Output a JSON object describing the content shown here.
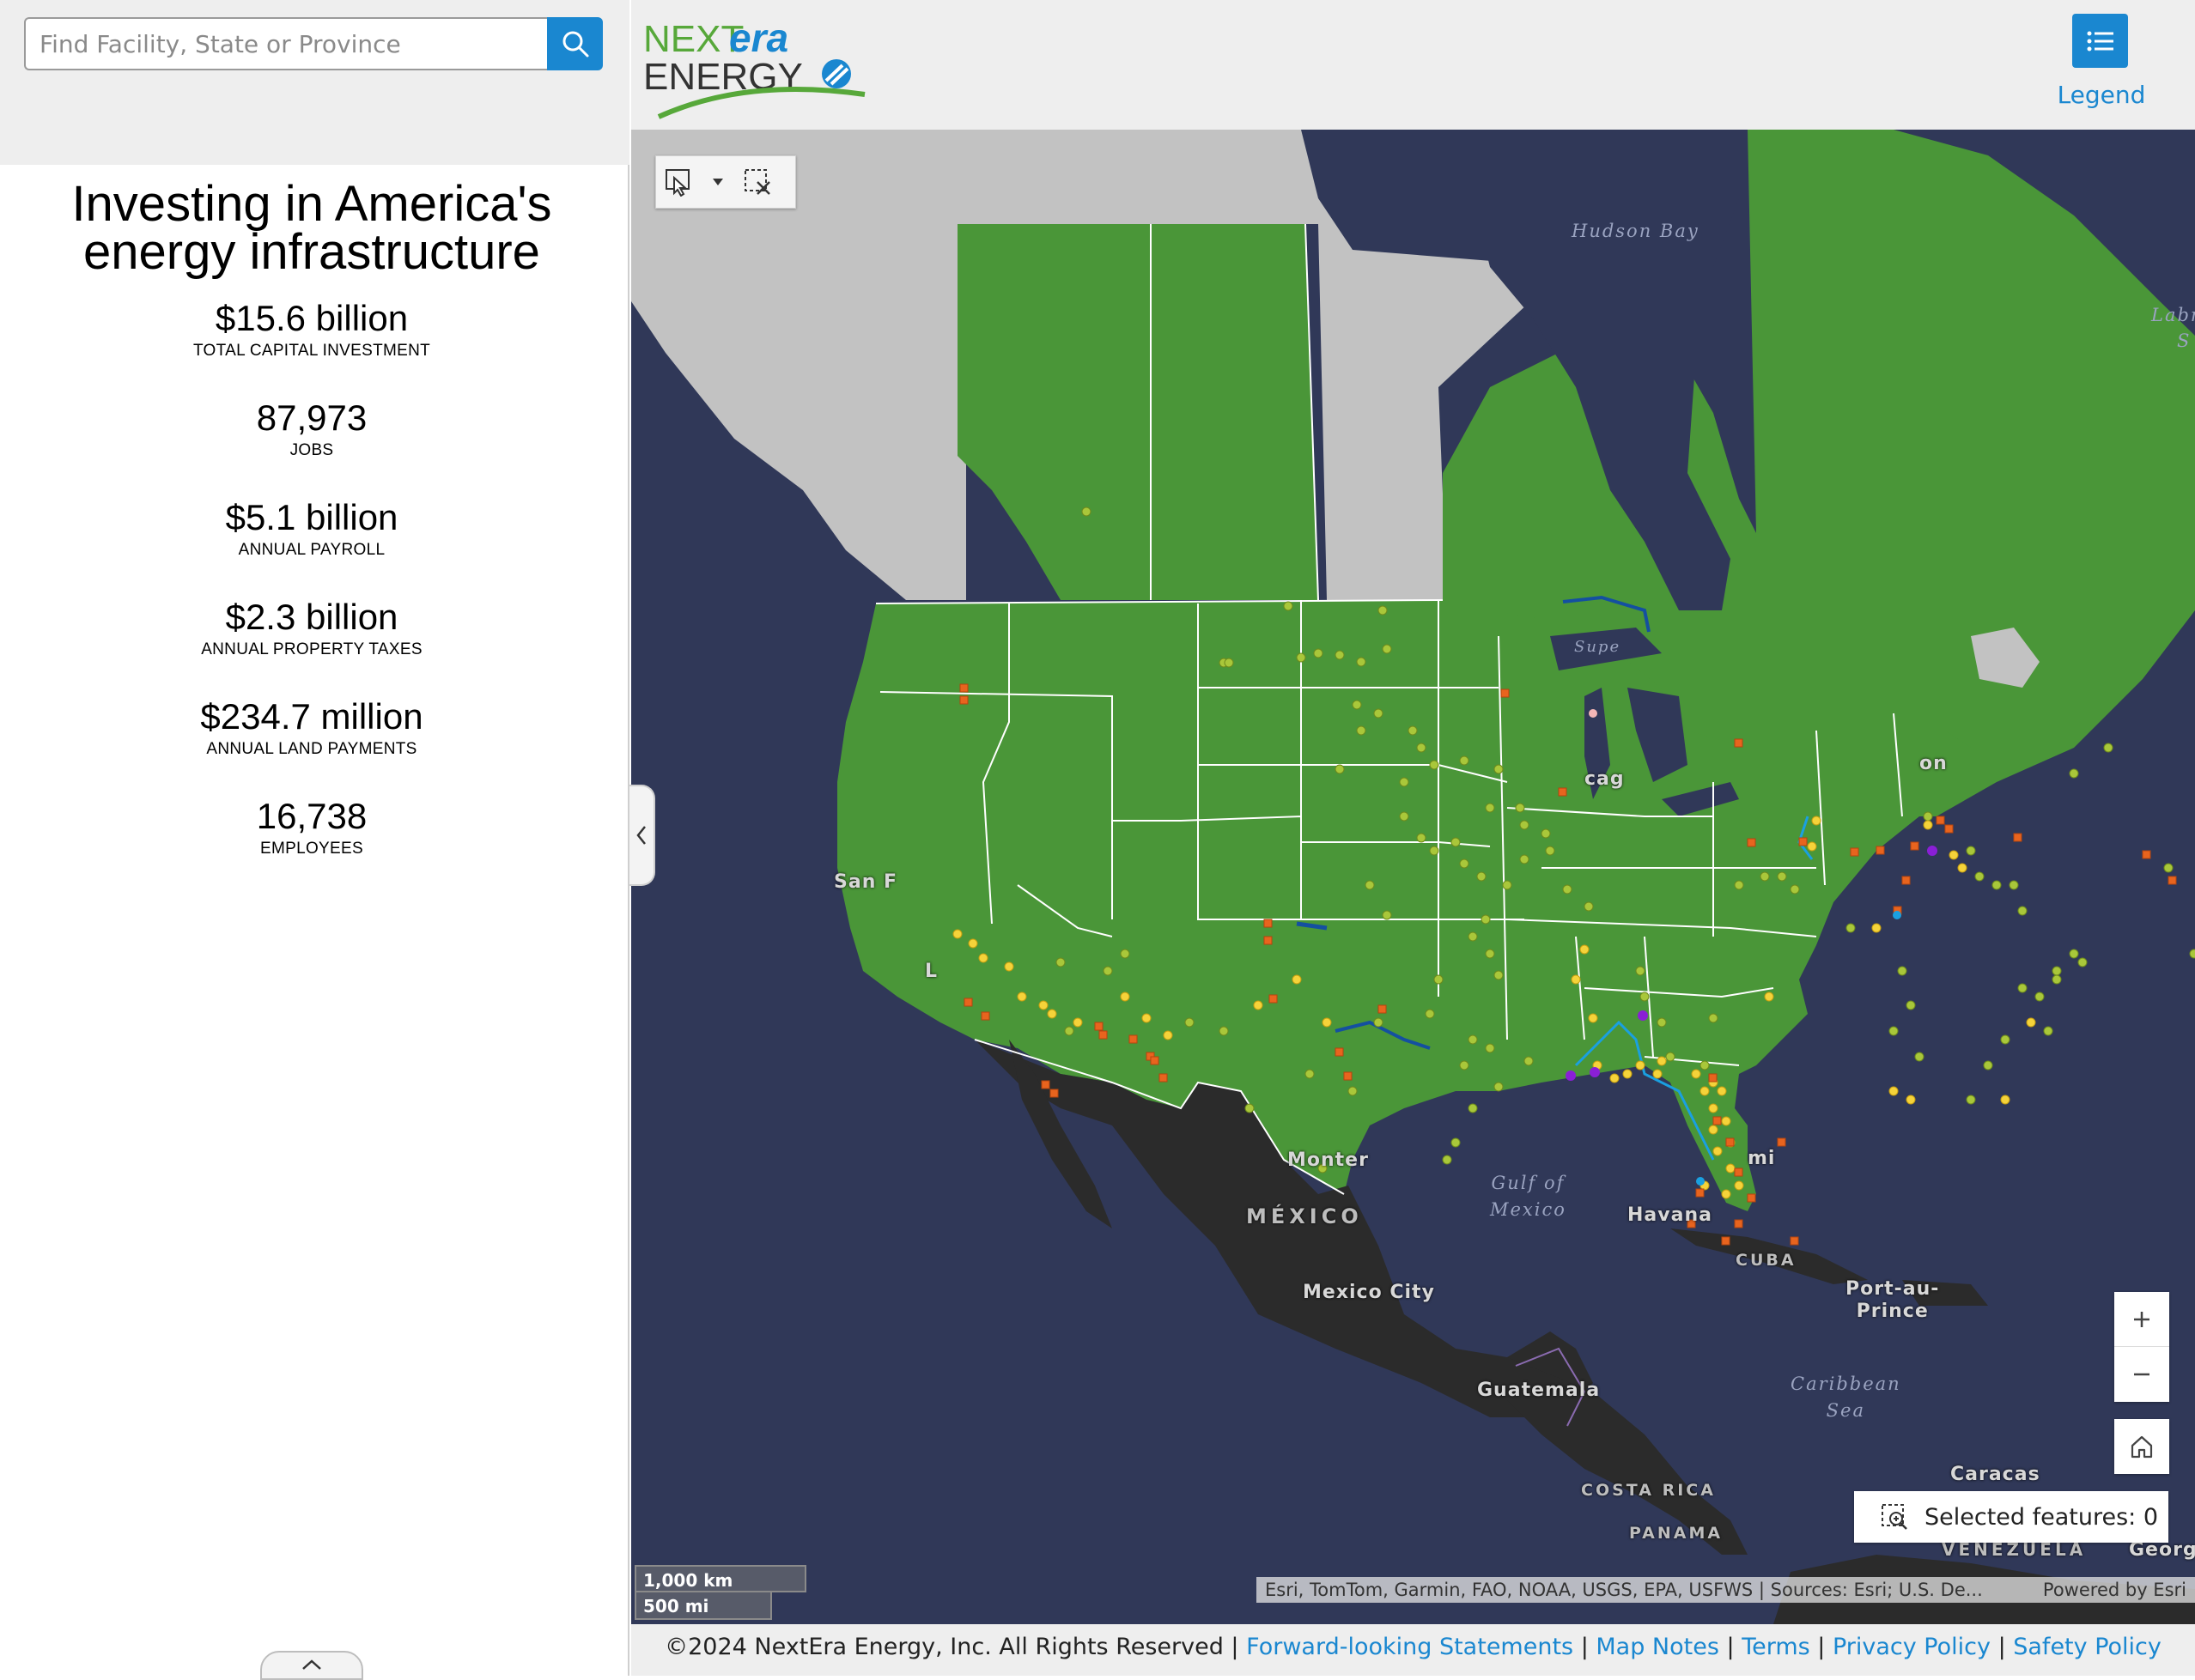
{
  "search": {
    "placeholder": "Find Facility, State or Province"
  },
  "stats": {
    "title": "Investing in America's energy infrastructure",
    "items": [
      {
        "value": "$15.6 billion",
        "label": "TOTAL CAPITAL INVESTMENT"
      },
      {
        "value": "87,973",
        "label": "JOBS"
      },
      {
        "value": "$5.1 billion",
        "label": "ANNUAL PAYROLL"
      },
      {
        "value": "$2.3 billion",
        "label": "ANNUAL PROPERTY TAXES"
      },
      {
        "value": "$234.7 million",
        "label": "ANNUAL LAND PAYMENTS"
      },
      {
        "value": "16,738",
        "label": "EMPLOYEES"
      }
    ]
  },
  "header": {
    "logo_text_next": "NEXT",
    "logo_text_era": "era",
    "logo_text_energy": "ENERGY",
    "legend_label": "Legend"
  },
  "map": {
    "labels": {
      "hudson_bay": "Hudson Bay",
      "labrador": "Labr",
      "labrador2": "S",
      "san_francisco": "San F",
      "la": "L",
      "chicago": "cag",
      "lake_superior": "Supe",
      "boston": "on",
      "monterrey": "Monter",
      "mexico": "MÉXICO",
      "mexico_city": "Mexico City",
      "gulf_of_mexico": "Gulf of\nMexico",
      "havana": "Havana",
      "miami": "mi",
      "cuba": "CUBA",
      "port_au_prince": "Port-au-\nPrince",
      "guatemala": "Guatemala",
      "caribbean_sea": "Caribbean\nSea",
      "costa_rica": "COSTA RICA",
      "panama": "PANAMA",
      "caracas": "Caracas",
      "venezuela": "VENEZUELA",
      "georgetown": "Georgeto"
    },
    "selected_features_label": "Selected features: 0",
    "scale": {
      "km": "1,000 km",
      "mi": "500 mi"
    },
    "attribution": "Esri, TomTom, Garmin, FAO, NOAA, USGS, EPA, USFWS | Sources: Esri; U.S. De...",
    "powered_by": "Powered by Esri",
    "colors": {
      "land_highlight": "#4a9638",
      "land_other": "#c2c2c2",
      "water": "#303858",
      "mexico_land": "#2b2b2b",
      "solar": "#f5d33a",
      "wind": "#a9c73a",
      "storage": "#e8641e",
      "gas": "#8a1fd6",
      "pipeline": "#1aa0e0"
    }
  },
  "footer": {
    "copyright": "©2024 NextEra Energy, Inc. All Rights Reserved | ",
    "links": [
      "Forward-looking Statements",
      "Map Notes",
      "Terms",
      "Privacy Policy",
      "Safety Policy"
    ]
  }
}
